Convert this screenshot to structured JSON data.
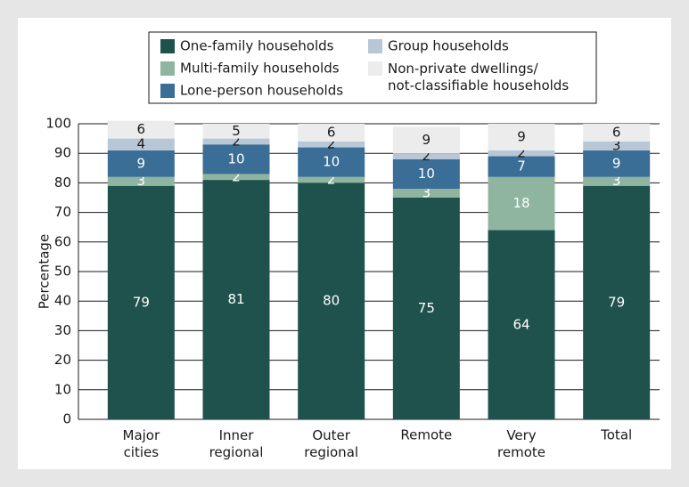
{
  "chart_data": {
    "type": "stacked_bar",
    "y_label": "Percentage",
    "categories": [
      "Major\ncities",
      "Inner\nregional",
      "Outer\nregional",
      "Remote",
      "Very\nremote",
      "Total"
    ],
    "series": [
      {
        "name": "One-family households",
        "color": "#1f524c",
        "label_color": "#ffffff",
        "values": [
          79,
          81,
          80,
          75,
          64,
          79
        ]
      },
      {
        "name": "Multi-family households",
        "color": "#8fb5a0",
        "label_color": "#ffffff",
        "values": [
          3,
          2,
          2,
          3,
          18,
          3
        ]
      },
      {
        "name": "Lone-person households",
        "color": "#3a6e96",
        "label_color": "#ffffff",
        "values": [
          9,
          10,
          10,
          10,
          7,
          9
        ]
      },
      {
        "name": "Group households",
        "color": "#b8c7d6",
        "label_color": "#1a1a1a",
        "values": [
          4,
          2,
          2,
          2,
          2,
          3
        ]
      },
      {
        "name": "Non-private dwellings/\nnot-classifiable households",
        "color": "#ececec",
        "label_color": "#1a1a1a",
        "values": [
          6,
          5,
          6,
          9,
          9,
          6
        ]
      }
    ],
    "ylim": [
      0,
      100
    ],
    "yticks": [
      0,
      10,
      20,
      30,
      40,
      50,
      60,
      70,
      80,
      90,
      100
    ],
    "grid": true
  }
}
